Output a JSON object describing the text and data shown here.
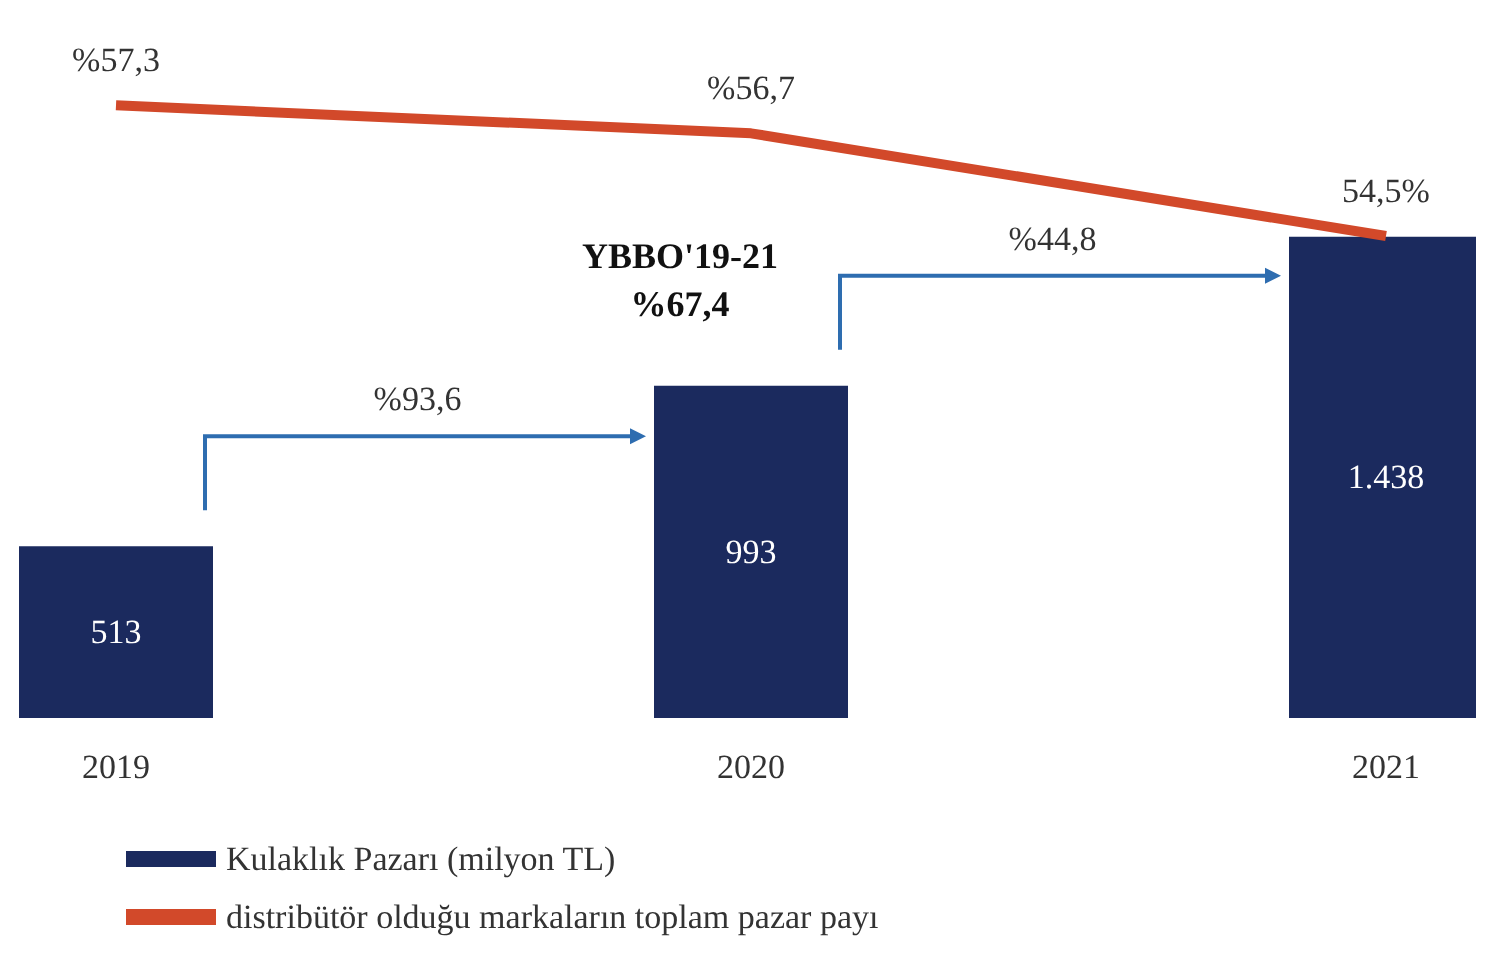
{
  "chart_data": {
    "type": "bar",
    "categories": [
      "2019",
      "2020",
      "2021"
    ],
    "series": [
      {
        "name": "Kulaklık Pazarı (milyon TL)",
        "color": "#1b2a5e",
        "values": [
          513,
          993,
          1438
        ],
        "value_labels": [
          "513",
          "993",
          "1.438"
        ]
      },
      {
        "name": "distribütör olduğu markaların toplam pazar payı",
        "type": "line",
        "axis": "y2",
        "color": "#d2492a",
        "values": [
          57.3,
          56.7,
          54.5
        ],
        "value_labels": [
          "%57,3",
          "%56,7",
          "54,5%"
        ]
      }
    ],
    "tick_labels": "x",
    "grid": false,
    "legend": "bottom left",
    "marker": "none",
    "annotations": [
      "%93,6",
      "%44,8",
      "YBBO'19-21\n%67,4"
    ]
  }
}
